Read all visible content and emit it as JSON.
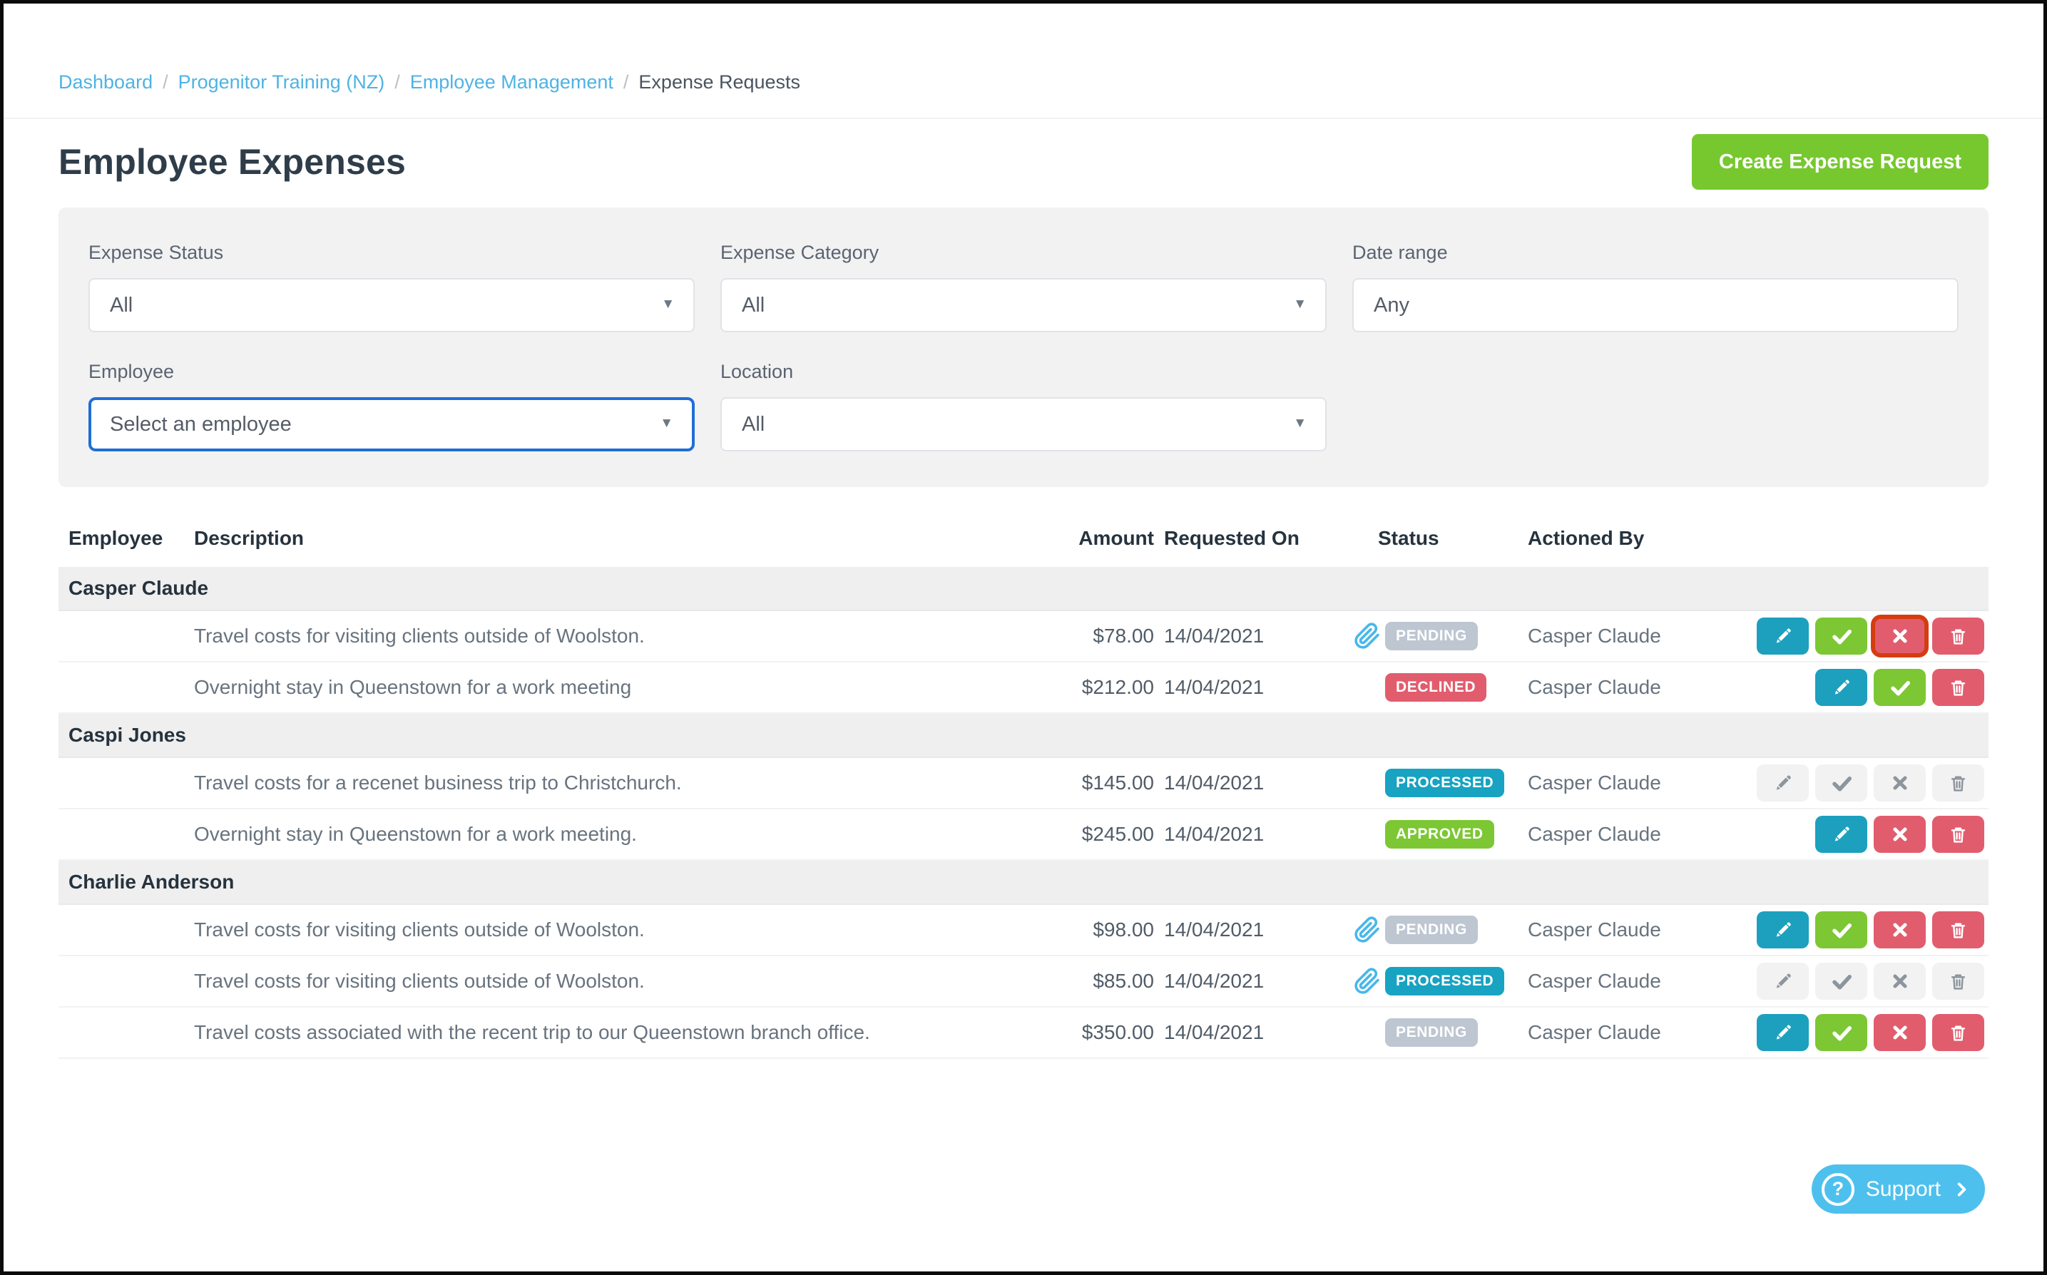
{
  "breadcrumb": {
    "separator": "/",
    "items": [
      {
        "label": "Dashboard",
        "link": true
      },
      {
        "label": "Progenitor Training (NZ)",
        "link": true
      },
      {
        "label": "Employee Management",
        "link": true
      },
      {
        "label": "Expense Requests",
        "link": false
      }
    ]
  },
  "page": {
    "title": "Employee Expenses",
    "create_button_label": "Create Expense Request"
  },
  "filters": {
    "expense_status": {
      "label": "Expense Status",
      "value": "All"
    },
    "expense_category": {
      "label": "Expense Category",
      "value": "All"
    },
    "date_range": {
      "label": "Date range",
      "value": "Any"
    },
    "employee": {
      "label": "Employee",
      "value": "Select an employee"
    },
    "location": {
      "label": "Location",
      "value": "All"
    }
  },
  "table": {
    "headers": [
      "Employee",
      "Description",
      "Amount",
      "Requested On",
      "Status",
      "Actioned By"
    ],
    "groups": [
      {
        "employee": "Casper Claude",
        "rows": [
          {
            "description": "Travel costs for visiting clients outside of Woolston.",
            "amount": "$78.00",
            "requested_on": "14/04/2021",
            "status": "PENDING",
            "has_attachment": true,
            "actioned_by": "Casper Claude",
            "actions": [
              {
                "type": "edit",
                "state": "active"
              },
              {
                "type": "approve",
                "state": "active"
              },
              {
                "type": "decline",
                "state": "active",
                "highlighted": true
              },
              {
                "type": "delete",
                "state": "active"
              }
            ]
          },
          {
            "description": "Overnight stay in Queenstown for a work meeting",
            "amount": "$212.00",
            "requested_on": "14/04/2021",
            "status": "DECLINED",
            "has_attachment": false,
            "actioned_by": "Casper Claude",
            "actions": [
              {
                "type": "edit",
                "state": "active"
              },
              {
                "type": "approve",
                "state": "active"
              },
              {
                "type": "delete",
                "state": "active"
              }
            ]
          }
        ]
      },
      {
        "employee": "Caspi Jones",
        "rows": [
          {
            "description": "Travel costs for a recenet business trip to Christchurch.",
            "amount": "$145.00",
            "requested_on": "14/04/2021",
            "status": "PROCESSED",
            "has_attachment": false,
            "actioned_by": "Casper Claude",
            "actions": [
              {
                "type": "edit",
                "state": "disabled"
              },
              {
                "type": "approve",
                "state": "disabled"
              },
              {
                "type": "decline",
                "state": "disabled"
              },
              {
                "type": "delete",
                "state": "disabled"
              }
            ]
          },
          {
            "description": "Overnight stay in Queenstown for a work meeting.",
            "amount": "$245.00",
            "requested_on": "14/04/2021",
            "status": "APPROVED",
            "has_attachment": false,
            "actioned_by": "Casper Claude",
            "actions": [
              {
                "type": "edit",
                "state": "active"
              },
              {
                "type": "decline",
                "state": "active"
              },
              {
                "type": "delete",
                "state": "active"
              }
            ]
          }
        ]
      },
      {
        "employee": "Charlie Anderson",
        "rows": [
          {
            "description": "Travel costs for visiting clients outside of Woolston.",
            "amount": "$98.00",
            "requested_on": "14/04/2021",
            "status": "PENDING",
            "has_attachment": true,
            "actioned_by": "Casper Claude",
            "actions": [
              {
                "type": "edit",
                "state": "active"
              },
              {
                "type": "approve",
                "state": "active"
              },
              {
                "type": "decline",
                "state": "active"
              },
              {
                "type": "delete",
                "state": "active"
              }
            ]
          },
          {
            "description": "Travel costs for visiting clients outside of Woolston.",
            "amount": "$85.00",
            "requested_on": "14/04/2021",
            "status": "PROCESSED",
            "has_attachment": true,
            "actioned_by": "Casper Claude",
            "actions": [
              {
                "type": "edit",
                "state": "disabled"
              },
              {
                "type": "approve",
                "state": "disabled"
              },
              {
                "type": "decline",
                "state": "disabled"
              },
              {
                "type": "delete",
                "state": "disabled"
              }
            ]
          },
          {
            "description": "Travel costs associated with the recent trip to our Queenstown branch office.",
            "amount": "$350.00",
            "requested_on": "14/04/2021",
            "status": "PENDING",
            "has_attachment": false,
            "actioned_by": "Casper Claude",
            "actions": [
              {
                "type": "edit",
                "state": "active"
              },
              {
                "type": "approve",
                "state": "active"
              },
              {
                "type": "decline",
                "state": "active"
              },
              {
                "type": "delete",
                "state": "active"
              }
            ]
          }
        ]
      }
    ]
  },
  "support": {
    "label": "Support"
  },
  "colors": {
    "link_blue": "#4eb3e4",
    "title_dark": "#2e3d49",
    "primary_green": "#76c82e",
    "support_blue": "#4ec0ed",
    "focus_blue": "#1f6ed4",
    "highlight_red": "#d53c10",
    "attachment_blue": "#49b7e9",
    "status": {
      "PENDING": "#bdc6d1",
      "DECLINED": "#e15d6d",
      "PROCESSED": "#17a3c1",
      "APPROVED": "#7cc733"
    },
    "action_buttons": {
      "edit": "#1ca0be",
      "approve": "#7cc733",
      "decline": "#e15d6d",
      "delete": "#e15d6d",
      "disabled_bg": "#f2f2f3",
      "disabled_icon": "#8d959d"
    }
  }
}
